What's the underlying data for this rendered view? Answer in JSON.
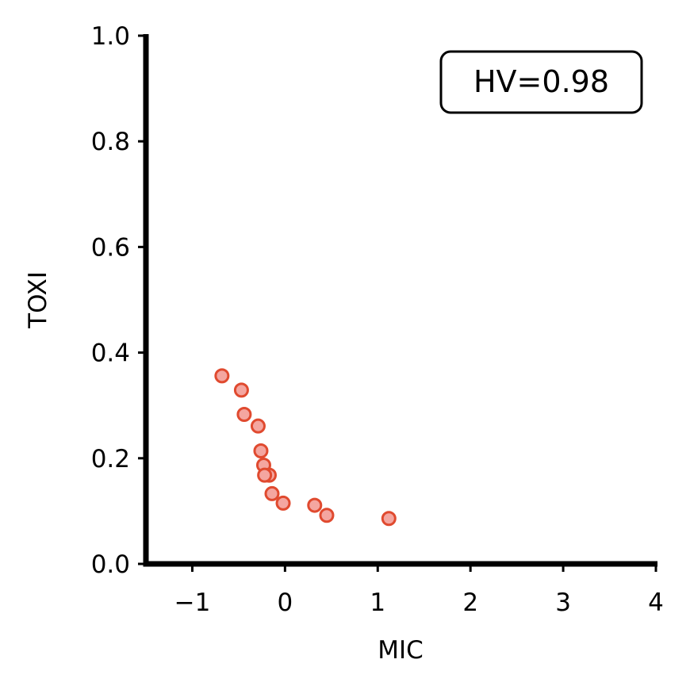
{
  "chart_data": {
    "type": "scatter",
    "xlabel": "MIC",
    "ylabel": "TOXI",
    "xlim": [
      -1.5,
      4.0
    ],
    "ylim": [
      0.0,
      1.0
    ],
    "x_ticks": [
      "−1",
      "0",
      "1",
      "2",
      "3",
      "4"
    ],
    "x_tick_values": [
      -1,
      0,
      1,
      2,
      3,
      4
    ],
    "y_ticks": [
      "0.0",
      "0.2",
      "0.4",
      "0.6",
      "0.8",
      "1.0"
    ],
    "y_tick_values": [
      0.0,
      0.2,
      0.4,
      0.6,
      0.8,
      1.0
    ],
    "grid": false,
    "annotation": "HV=0.98",
    "annotation_position": "top-right",
    "marker_fill": "#f4a6a0",
    "marker_edge": "#e04a2f",
    "points": [
      {
        "x": -0.68,
        "y": 0.356
      },
      {
        "x": -0.47,
        "y": 0.329
      },
      {
        "x": -0.44,
        "y": 0.283
      },
      {
        "x": -0.29,
        "y": 0.261
      },
      {
        "x": -0.26,
        "y": 0.214
      },
      {
        "x": -0.23,
        "y": 0.187
      },
      {
        "x": -0.17,
        "y": 0.168
      },
      {
        "x": -0.22,
        "y": 0.168
      },
      {
        "x": -0.14,
        "y": 0.133
      },
      {
        "x": -0.02,
        "y": 0.115
      },
      {
        "x": 0.32,
        "y": 0.111
      },
      {
        "x": 0.45,
        "y": 0.092
      },
      {
        "x": 1.12,
        "y": 0.086
      }
    ]
  }
}
